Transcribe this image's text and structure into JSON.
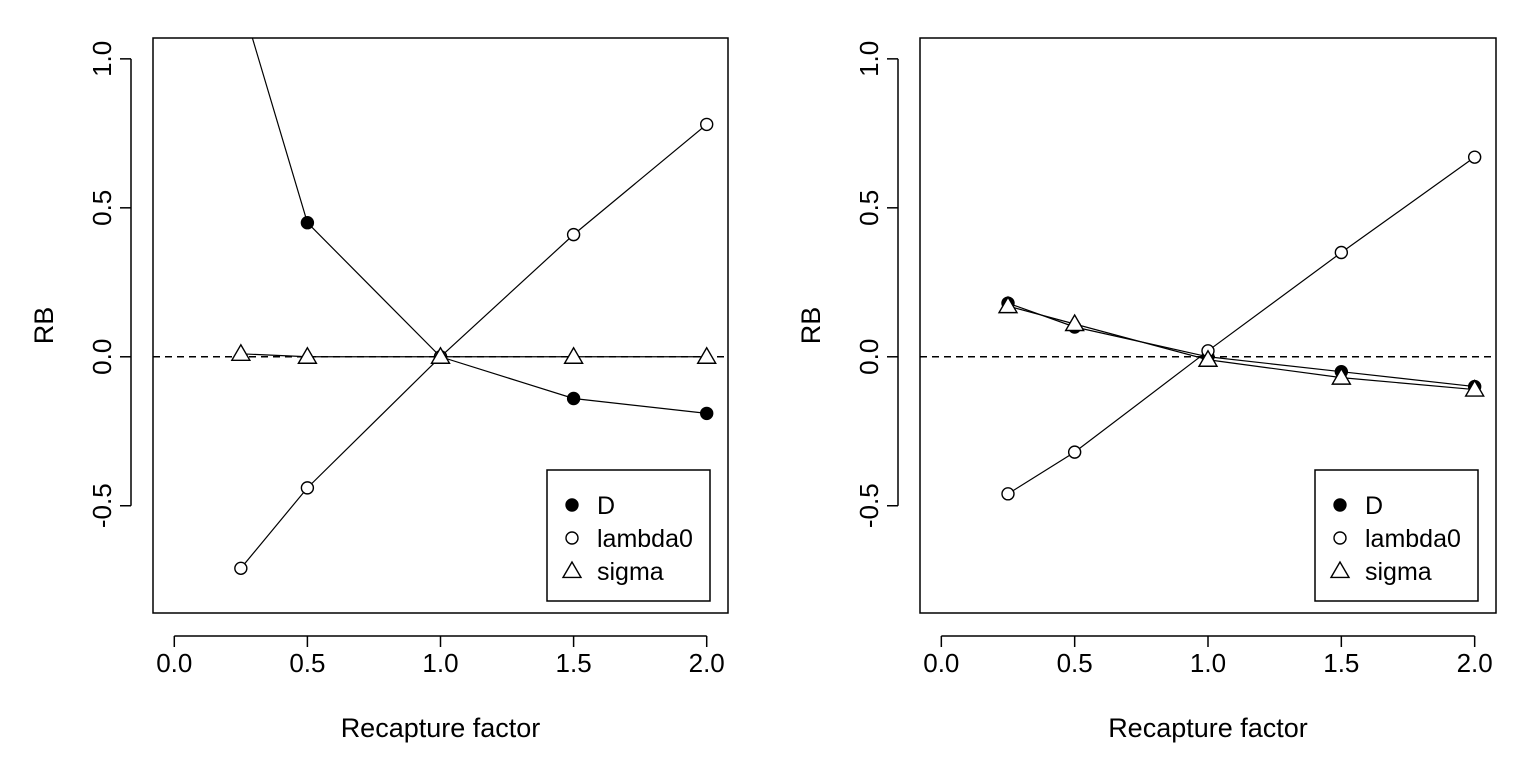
{
  "chart_data": [
    {
      "type": "line",
      "xlabel": "Recapture factor",
      "ylabel": "RB",
      "xlim": [
        -0.08,
        2.08
      ],
      "ylim": [
        -0.86,
        1.07
      ],
      "xticks": [
        "0.0",
        "0.5",
        "1.0",
        "1.5",
        "2.0"
      ],
      "yticks": [
        "-0.5",
        "0.0",
        "0.5",
        "1.0"
      ],
      "reference_line": {
        "y": 0,
        "style": "dashed"
      },
      "legend": {
        "position": "bottom-right",
        "entries": [
          "D",
          "lambda0",
          "sigma"
        ]
      },
      "series": [
        {
          "name": "D",
          "marker": "filled-circle",
          "x": [
            0.25,
            0.5,
            1.0,
            1.5,
            2.0
          ],
          "values": [
            1.2,
            0.45,
            0.0,
            -0.14,
            -0.19
          ]
        },
        {
          "name": "lambda0",
          "marker": "open-circle",
          "x": [
            0.25,
            0.5,
            1.0,
            1.5,
            2.0
          ],
          "values": [
            -0.71,
            -0.44,
            0.0,
            0.41,
            0.78
          ]
        },
        {
          "name": "sigma",
          "marker": "open-triangle",
          "x": [
            0.25,
            0.5,
            1.0,
            1.5,
            2.0
          ],
          "values": [
            0.01,
            0.0,
            0.0,
            0.0,
            0.0
          ]
        }
      ]
    },
    {
      "type": "line",
      "xlabel": "Recapture factor",
      "ylabel": "RB",
      "xlim": [
        -0.08,
        2.08
      ],
      "ylim": [
        -0.86,
        1.07
      ],
      "xticks": [
        "0.0",
        "0.5",
        "1.0",
        "1.5",
        "2.0"
      ],
      "yticks": [
        "-0.5",
        "0.0",
        "0.5",
        "1.0"
      ],
      "reference_line": {
        "y": 0,
        "style": "dashed"
      },
      "legend": {
        "position": "bottom-right",
        "entries": [
          "D",
          "lambda0",
          "sigma"
        ]
      },
      "series": [
        {
          "name": "D",
          "marker": "filled-circle",
          "x": [
            0.25,
            0.5,
            1.0,
            1.5,
            2.0
          ],
          "values": [
            0.18,
            0.1,
            0.0,
            -0.05,
            -0.1
          ]
        },
        {
          "name": "lambda0",
          "marker": "open-circle",
          "x": [
            0.25,
            0.5,
            1.0,
            1.5,
            2.0
          ],
          "values": [
            -0.46,
            -0.32,
            0.02,
            0.35,
            0.67
          ]
        },
        {
          "name": "sigma",
          "marker": "open-triangle",
          "x": [
            0.25,
            0.5,
            1.0,
            1.5,
            2.0
          ],
          "values": [
            0.17,
            0.11,
            -0.01,
            -0.07,
            -0.11
          ]
        }
      ]
    }
  ]
}
